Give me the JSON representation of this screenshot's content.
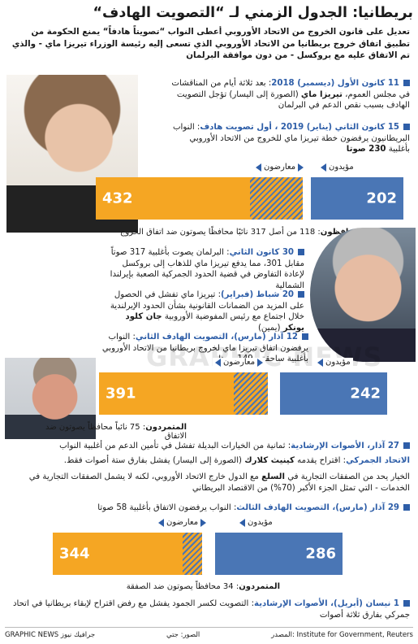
{
  "title": "بريطانيا: الجدول الزمني لـ “التصويت الهادف“",
  "subtitle": "تعديل على قانون الخروج من الاتحاد الأوروبي أعطى النواب “تصويتاً هادفاً“ يمنع الحكومة من تطبيق اتفاق خروج بريطانيا من الاتحاد الأوروبي الذي تسعى إليه رئيسة الوزراء تيريزا ماي - والذي تم الاتفاق عليه مع بروكسل - من دون موافقة البرلمان",
  "entries": {
    "e1": {
      "head": "11 كانون الأول (ديسمبر) 2018",
      "body": ": بعد ثلاثة أيام من المناقشات في مجلس العموم، ",
      "bold": "تيريزا ماي",
      "body2": " (الصورة إلى اليسار) تؤجل التصويت الهادف بسبب نقص الدعم في البرلمان"
    },
    "e2": {
      "head": "15 كانون الثاني (يناير) 2019 ، أول تصويت هادف",
      "body": ": النواب البريطانيون يرفضون خطة تيريزا ماي للخروج من الاتحاد الأوروبي بأغلبية ",
      "bold": "230 صوتا"
    },
    "e3": {
      "head": "30 كانون الثاني",
      "body": ": البرلمان يصوت بأغلبية 317 صوتاً مقابل 301، مما يدفع تيريزا ماي للذهاب إلى بروكسل لإعادة التفاوض في قضية الحدود الجمركية الصعبة بإيرلندا الشمالية"
    },
    "e4": {
      "head": "20 شباط (فبراير)",
      "body": ": تيريزا ماي تفشل في الحصول على المزيد من الضمانات القانونية بشأن الحدود الإيرلندية خلال اجتماع مع رئيس المفوضية الأوروبية ",
      "bold": "جان كلود يونكر",
      "body2": " (يمين)"
    },
    "e5": {
      "head": "12 آذار (مارس)، التصويت الهادف الثاني",
      "body": ": النواب يرفضون اتفاق تيريزا ماي لخروج بريطانيا من الاتحاد الأوروبي بأغلبية ساحقة - 149 صوتا"
    },
    "e6": {
      "head": "27 آذار، الأصوات الإرشادية",
      "body": ": ثمانية من الخيارات البديلة تفشل في تأمين الدعم من أغلبية النواب"
    },
    "e7": {
      "head": "الاتحاد الجمركي",
      "body": ": اقتراح يقدمه ",
      "bold": "كينيث كلارك",
      "body2": " (الصورة إلى اليسار) يفشل بفارق ستة أصوات فقط."
    },
    "e7b": {
      "body": "الخيار يحد من الصفقات التجارية في ",
      "bold": "السلع",
      "body2": " مع الدول خارج الاتحاد الأوروبي، لكنه لا يشمل الصفقات التجارية في الخدمات - التي تمثل الجزء الأكبر (70%) من الاقتصاد البريطاني"
    },
    "e8": {
      "head": "29 آذار (مارس)، التصويت الهادف الثالث",
      "body": ": النواب يرفضون الاتفاق بأغلبية 58 صوتا"
    },
    "e9": {
      "head": "1 نيسان (أبريل)، الأصوات الإرشادية",
      "body": ": التصويت لكسر الجمود يفشل مع رفض اقتراح لإبقاء بريطانيا في اتحاد جمركي بفارق ثلاثة أصوات"
    }
  },
  "labels": {
    "against": "معارضون",
    "for": "مؤيدون",
    "rebels": "المتمردون"
  },
  "votes": [
    {
      "against": 432,
      "for": 202,
      "caption_head": "المتمردون المحافظون",
      "caption": ": 118 من أصل 317 نائبًا محافظًا يصوتون ضد اتفاق الخروج",
      "against_frac": 0.681,
      "rebel_frac": 0.186
    },
    {
      "against": 391,
      "for": 242,
      "caption_head": "المتمردون",
      "caption": ": 75 نائباً محافظاً يصوتون ضد الاتفاق",
      "against_frac": 0.618,
      "rebel_frac": 0.118
    },
    {
      "against": 344,
      "for": 286,
      "caption_head": "المتمردون",
      "caption": ": 34 محافظاً يصوتون ضد الصفقة",
      "against_frac": 0.546,
      "rebel_frac": 0.054
    }
  ],
  "footer": {
    "source": "المصدر: Institute for Government, Reuters",
    "photos": "الصور: جتي",
    "brand": "GRAPHIC NEWS جرافيك نيوز"
  },
  "watermark": "GRAPHIC NEWS",
  "colors": {
    "blue": "#2e5ea8",
    "gold": "#f5a623"
  }
}
